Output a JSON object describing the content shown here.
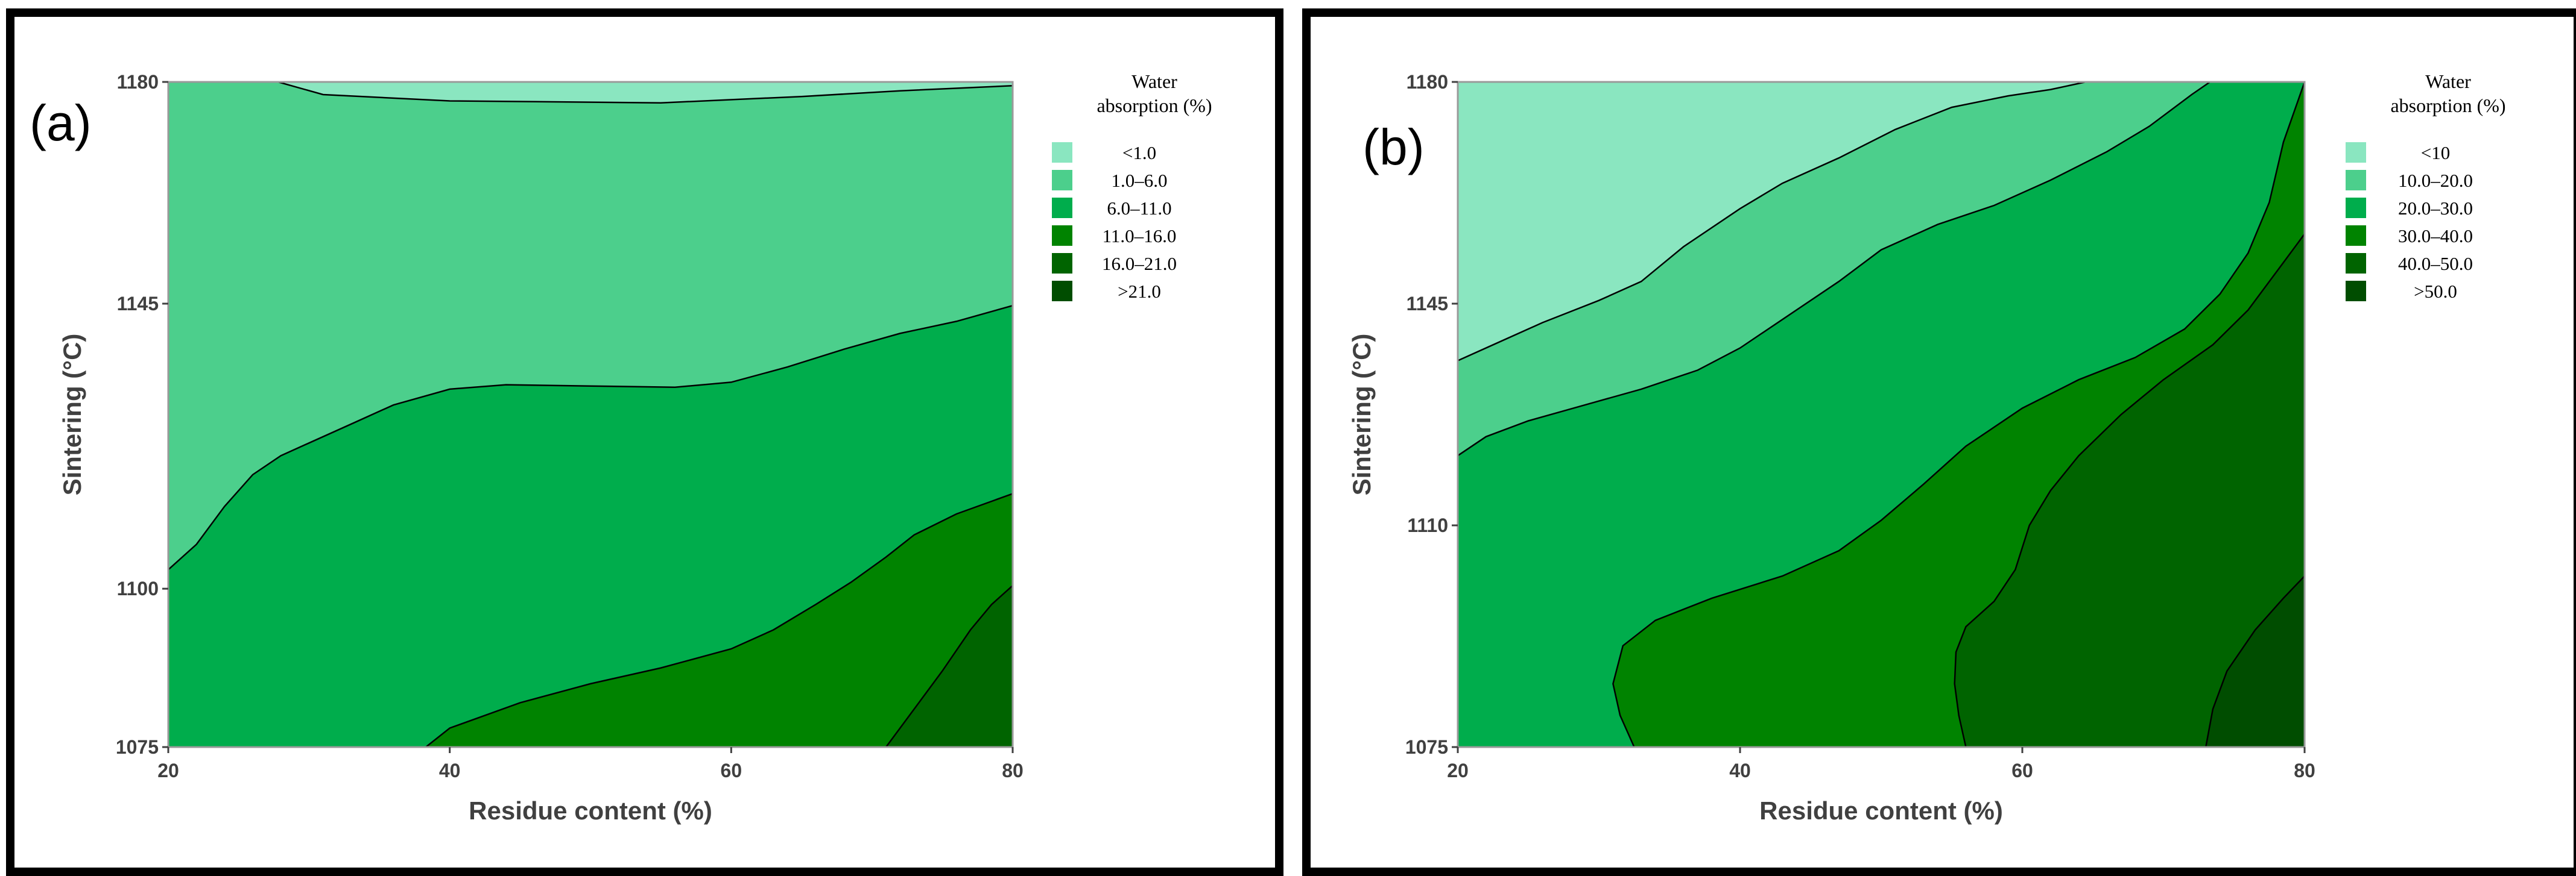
{
  "chart_data": [
    {
      "type": "contour",
      "panel_label": "(a)",
      "xlabel": "Residue content (%)",
      "ylabel": "Sintering (°C)",
      "xlim": [
        20,
        80
      ],
      "ylim": [
        1075,
        1180
      ],
      "x_ticks": [
        "20",
        "40",
        "60",
        "80"
      ],
      "y_ticks": [
        "1075",
        "1100",
        "1145",
        "1180"
      ],
      "legend_title": "Water absorption (%)",
      "legend_title_lines": [
        "Water",
        "absorption (%)"
      ],
      "legend": [
        {
          "label": "<1.0",
          "color": "#8ae6c0"
        },
        {
          "label": "1.0–6.0",
          "color": "#4ccf8c"
        },
        {
          "label": "6.0–11.0",
          "color": "#00ad4c"
        },
        {
          "label": "11.0–16.0",
          "color": "#008300"
        },
        {
          "label": "16.0–21.0",
          "color": "#006400"
        },
        {
          "label": ">21.0",
          "color": "#004d00"
        }
      ],
      "regions": [
        {
          "level": "<1.0",
          "boundary": [
            [
              27.8,
              1180
            ],
            [
              31,
              1178
            ],
            [
              40,
              1177
            ],
            [
              50,
              1176.8
            ],
            [
              55,
              1176.7
            ],
            [
              65,
              1177.7
            ],
            [
              72,
              1178.6
            ],
            [
              80,
              1179.4
            ]
          ]
        },
        {
          "level": "1.0–6.0",
          "boundary": [
            [
              20,
              1103
            ],
            [
              22,
              1107
            ],
            [
              24,
              1113
            ],
            [
              26,
              1118
            ],
            [
              28,
              1121
            ],
            [
              30,
              1123
            ],
            [
              33,
              1126
            ],
            [
              36,
              1129
            ],
            [
              40,
              1131.5
            ],
            [
              44,
              1132.2
            ],
            [
              50,
              1132
            ],
            [
              56,
              1131.8
            ],
            [
              60,
              1132.6
            ],
            [
              64,
              1135
            ],
            [
              68,
              1137.8
            ],
            [
              72,
              1140.3
            ],
            [
              76,
              1142.2
            ],
            [
              80,
              1144.7
            ]
          ]
        },
        {
          "level": "6.0–11.0",
          "boundary": [
            [
              38.3,
              1075
            ],
            [
              40,
              1078
            ],
            [
              45,
              1082
            ],
            [
              50,
              1085
            ],
            [
              55,
              1087.5
            ],
            [
              60,
              1090.5
            ],
            [
              63,
              1093.5
            ],
            [
              66,
              1097.5
            ],
            [
              68.5,
              1101
            ],
            [
              71,
              1105
            ],
            [
              73,
              1108.5
            ],
            [
              76,
              1111.8
            ],
            [
              80,
              1115
            ]
          ]
        },
        {
          "level": "11.0–16.0",
          "boundary": [
            [
              71,
              1075
            ],
            [
              73,
              1081
            ],
            [
              75,
              1087
            ],
            [
              77,
              1093.5
            ],
            [
              78.5,
              1097.5
            ],
            [
              80,
              1100.5
            ]
          ]
        }
      ]
    },
    {
      "type": "contour",
      "panel_label": "(b)",
      "xlabel": "Residue content (%)",
      "ylabel": "Sintering (°C)",
      "xlim": [
        20,
        80
      ],
      "ylim": [
        1075,
        1180
      ],
      "x_ticks": [
        "20",
        "40",
        "60",
        "80"
      ],
      "y_ticks": [
        "1075",
        "1110",
        "1145",
        "1180"
      ],
      "legend_title": "Water absorption (%)",
      "legend_title_lines": [
        "Water",
        "absorption (%)"
      ],
      "legend": [
        {
          "label": "<10",
          "color": "#8ae6c0"
        },
        {
          "label": "10.0–20.0",
          "color": "#4ccf8c"
        },
        {
          "label": "20.0–30.0",
          "color": "#00ad4c"
        },
        {
          "label": "30.0–40.0",
          "color": "#008300"
        },
        {
          "label": "40.0–50.0",
          "color": "#006400"
        },
        {
          "label": ">50.0",
          "color": "#004d00"
        }
      ],
      "regions": [
        {
          "level": "<10",
          "boundary": [
            [
              20,
              1136
            ],
            [
              22.5,
              1138.5
            ],
            [
              26,
              1142
            ],
            [
              30,
              1145.5
            ],
            [
              33,
              1148.5
            ],
            [
              36,
              1154
            ],
            [
              40,
              1160
            ],
            [
              43,
              1164
            ],
            [
              47,
              1168
            ],
            [
              51,
              1172.5
            ],
            [
              55,
              1176
            ],
            [
              59,
              1177.8
            ],
            [
              62,
              1178.8
            ],
            [
              64.5,
              1180
            ]
          ]
        },
        {
          "level": "10.0–20.0",
          "boundary": [
            [
              20,
              1121
            ],
            [
              22,
              1124
            ],
            [
              25,
              1126.5
            ],
            [
              29,
              1129
            ],
            [
              33,
              1131.5
            ],
            [
              37,
              1134.5
            ],
            [
              40,
              1138
            ],
            [
              43,
              1142.5
            ],
            [
              47,
              1148.5
            ],
            [
              50,
              1153.5
            ],
            [
              54,
              1157.5
            ],
            [
              58,
              1160.5
            ],
            [
              62,
              1164.5
            ],
            [
              66,
              1169
            ],
            [
              69,
              1173
            ],
            [
              72,
              1178
            ],
            [
              73.3,
              1180
            ]
          ]
        },
        {
          "level": "20.0–30.0",
          "boundary": [
            [
              32.5,
              1075
            ],
            [
              31.5,
              1080
            ],
            [
              31,
              1085
            ],
            [
              31.7,
              1091
            ],
            [
              34,
              1095
            ],
            [
              38,
              1098.5
            ],
            [
              43,
              1102
            ],
            [
              47,
              1106
            ],
            [
              50,
              1110.8
            ],
            [
              53,
              1116.5
            ],
            [
              56,
              1122.5
            ],
            [
              60,
              1128.5
            ],
            [
              64,
              1133
            ],
            [
              68,
              1136.5
            ],
            [
              71.5,
              1141
            ],
            [
              74,
              1146.5
            ],
            [
              76,
              1153
            ],
            [
              77.5,
              1161
            ],
            [
              78.5,
              1170.5
            ],
            [
              80,
              1180
            ]
          ]
        },
        {
          "level": "30.0–40.0",
          "boundary": [
            [
              56,
              1075
            ],
            [
              55.5,
              1080
            ],
            [
              55.2,
              1085
            ],
            [
              55.3,
              1090
            ],
            [
              56,
              1094
            ],
            [
              58,
              1098
            ],
            [
              59.5,
              1103
            ],
            [
              60.5,
              1110
            ],
            [
              62,
              1115.5
            ],
            [
              64,
              1121
            ],
            [
              67,
              1127.5
            ],
            [
              70,
              1133
            ],
            [
              73.5,
              1138.5
            ],
            [
              76,
              1144
            ],
            [
              78.5,
              1151.5
            ],
            [
              80,
              1156
            ]
          ]
        },
        {
          "level": "40.0–50.0",
          "boundary": [
            [
              73,
              1075
            ],
            [
              73.5,
              1081
            ],
            [
              74.5,
              1087
            ],
            [
              76.5,
              1093.5
            ],
            [
              78.5,
              1098.5
            ],
            [
              80,
              1102
            ]
          ]
        }
      ]
    }
  ]
}
